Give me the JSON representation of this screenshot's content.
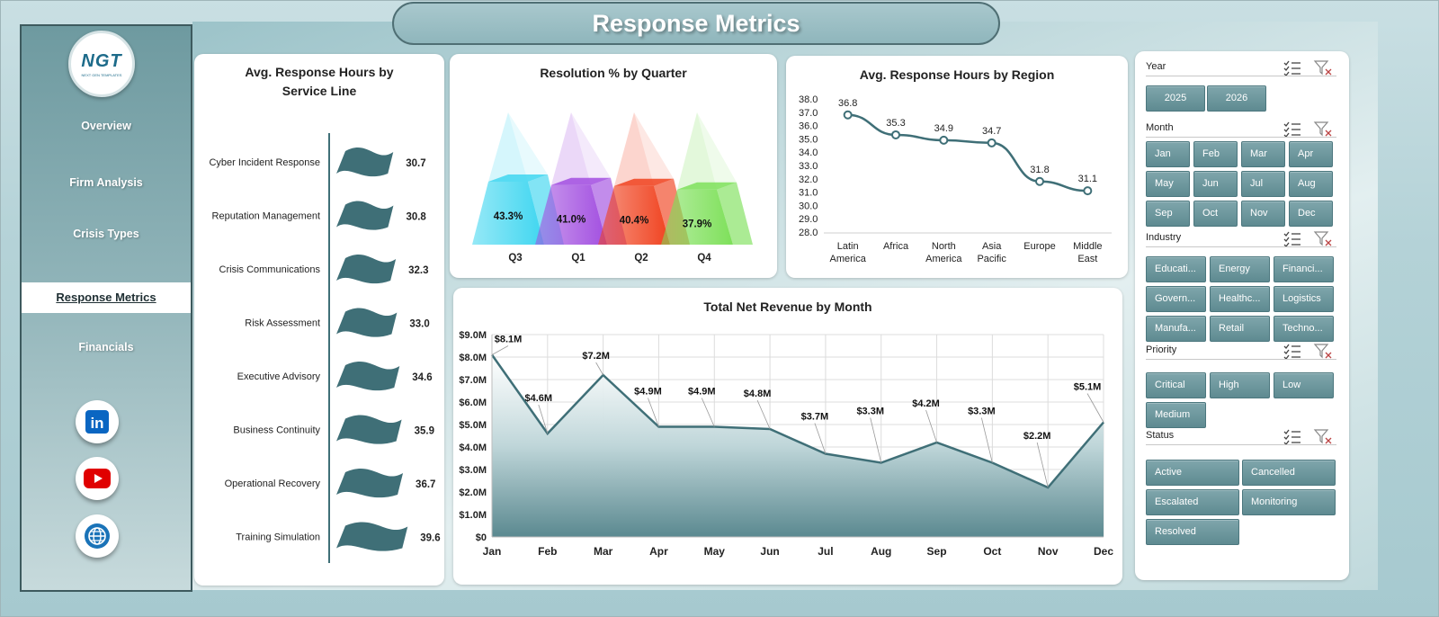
{
  "header": {
    "title": "Response Metrics"
  },
  "logo": {
    "mark": "NGT",
    "sub": "NEXT GEN TEMPLATES"
  },
  "sidebar": {
    "items": [
      {
        "label": "Overview",
        "active": false
      },
      {
        "label": "Firm Analysis",
        "active": false
      },
      {
        "label": "Crisis Types",
        "active": false
      },
      {
        "label": "Response Metrics",
        "active": true
      },
      {
        "label": "Financials",
        "active": false
      }
    ],
    "social": [
      {
        "icon": "linkedin-icon",
        "text": "in",
        "color": "#0a66c2"
      },
      {
        "icon": "youtube-icon",
        "text": "▶",
        "color": "#e00000"
      },
      {
        "icon": "globe-icon",
        "text": "",
        "color": "#1a73b8"
      }
    ]
  },
  "charts": {
    "service": {
      "title": "Avg. Response Hours by Service Line",
      "chart_data": {
        "type": "bar",
        "categories": [
          "Cyber Incident Response",
          "Reputation Management",
          "Crisis Communications",
          "Risk Assessment",
          "Executive Advisory",
          "Business Continuity",
          "Operational Recovery",
          "Training Simulation"
        ],
        "values": [
          30.7,
          30.8,
          32.3,
          33.0,
          34.6,
          35.9,
          36.7,
          39.6
        ],
        "labels": [
          "30.7",
          "30.8",
          "32.3",
          "33.0",
          "34.6",
          "35.9",
          "36.7",
          "39.6"
        ],
        "color": "#3f6f77"
      }
    },
    "quarter": {
      "title": "Resolution % by Quarter",
      "chart_data": {
        "type": "bar",
        "categories": [
          "Q3",
          "Q1",
          "Q2",
          "Q4"
        ],
        "values": [
          43.3,
          41.0,
          40.4,
          37.9
        ],
        "labels": [
          "43.3%",
          "41.0%",
          "40.4%",
          "37.9%"
        ],
        "colors": [
          "#3fd6f0",
          "#a24fe0",
          "#f0421f",
          "#7ee05a"
        ]
      }
    },
    "region": {
      "title": "Avg. Response Hours by Region",
      "chart_data": {
        "type": "line",
        "categories": [
          [
            "Latin",
            "America"
          ],
          [
            "Africa"
          ],
          [
            "North",
            "America"
          ],
          [
            "Asia",
            "Pacific"
          ],
          [
            "Europe"
          ],
          [
            "Middle",
            "East"
          ]
        ],
        "values": [
          36.8,
          35.3,
          34.9,
          34.7,
          31.8,
          31.1
        ],
        "labels": [
          "36.8",
          "35.3",
          "34.9",
          "34.7",
          "31.8",
          "31.1"
        ],
        "ylim": [
          28.0,
          38.0
        ],
        "yticks": [
          "28.0",
          "29.0",
          "30.0",
          "31.0",
          "32.0",
          "33.0",
          "34.0",
          "35.0",
          "36.0",
          "37.0",
          "38.0"
        ],
        "color": "#3f6f77"
      }
    },
    "revenue": {
      "title": "Total Net Revenue by Month",
      "chart_data": {
        "type": "area",
        "categories": [
          "Jan",
          "Feb",
          "Mar",
          "Apr",
          "May",
          "Jun",
          "Jul",
          "Aug",
          "Sep",
          "Oct",
          "Nov",
          "Dec"
        ],
        "values": [
          8.1,
          4.6,
          7.2,
          4.9,
          4.9,
          4.8,
          3.7,
          3.3,
          4.2,
          3.3,
          2.2,
          5.1
        ],
        "labels": [
          "$8.1M",
          "$4.6M",
          "$7.2M",
          "$4.9M",
          "$4.9M",
          "$4.8M",
          "$3.7M",
          "$3.3M",
          "$4.2M",
          "$3.3M",
          "$2.2M",
          "$5.1M"
        ],
        "ylim": [
          0,
          9
        ],
        "yticks": [
          "$0",
          "$1.0M",
          "$2.0M",
          "$3.0M",
          "$4.0M",
          "$5.0M",
          "$6.0M",
          "$7.0M",
          "$8.0M",
          "$9.0M"
        ],
        "grid": true,
        "color": "#3f6f77"
      }
    }
  },
  "slicers": [
    {
      "title": "Year",
      "items": [
        "2025",
        "2026"
      ]
    },
    {
      "title": "Month",
      "items": [
        "Jan",
        "Feb",
        "Mar",
        "Apr",
        "May",
        "Jun",
        "Jul",
        "Aug",
        "Sep",
        "Oct",
        "Nov",
        "Dec"
      ]
    },
    {
      "title": "Industry",
      "items": [
        "Educati...",
        "Energy",
        "Financi...",
        "Govern...",
        "Healthc...",
        "Logistics",
        "Manufa...",
        "Retail",
        "Techno..."
      ]
    },
    {
      "title": "Priority",
      "items": [
        "Critical",
        "High",
        "Low",
        "Medium"
      ]
    },
    {
      "title": "Status",
      "items": [
        "Active",
        "Cancelled",
        "Escalated",
        "Monitoring",
        "Resolved"
      ]
    }
  ]
}
